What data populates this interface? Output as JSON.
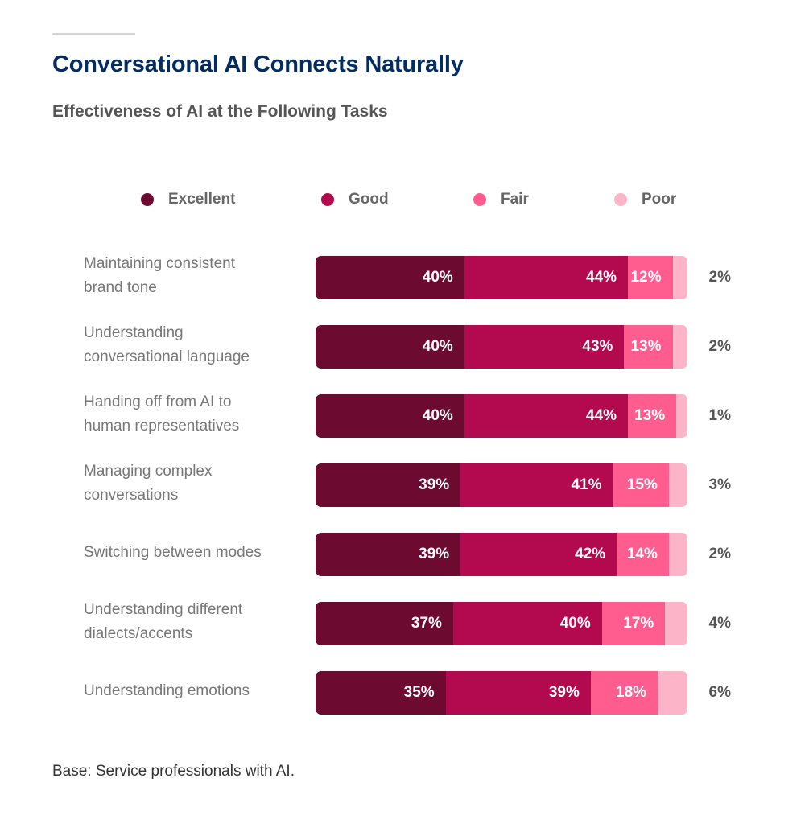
{
  "header": {
    "title": "Conversational AI Connects Naturally",
    "subtitle": "Effectiveness of AI at the Following Tasks"
  },
  "colors": {
    "excellent": "#6d0a30",
    "good": "#b3094f",
    "fair": "#ff5d8f",
    "poor": "#fbb4c8"
  },
  "chart_data": {
    "type": "bar",
    "orientation": "horizontal",
    "stacked": true,
    "title": "Conversational AI Connects Naturally",
    "subtitle": "Effectiveness of AI at the Following Tasks",
    "xlabel": "",
    "ylabel": "",
    "xlim": [
      0,
      100
    ],
    "legend_position": "top",
    "grid": false,
    "unit": "%",
    "categories": [
      [
        "Maintaining consistent",
        "brand tone"
      ],
      [
        "Understanding",
        "conversational language"
      ],
      [
        "Handing off from AI to",
        "human representatives"
      ],
      [
        "Managing complex",
        "conversations"
      ],
      [
        "Switching between modes"
      ],
      [
        "Understanding different",
        "dialects/accents"
      ],
      [
        "Understanding emotions"
      ]
    ],
    "series": [
      {
        "name": "Excellent",
        "values": [
          40,
          40,
          40,
          39,
          39,
          37,
          35
        ]
      },
      {
        "name": "Good",
        "values": [
          44,
          43,
          44,
          41,
          42,
          40,
          39
        ]
      },
      {
        "name": "Fair",
        "values": [
          12,
          13,
          13,
          15,
          14,
          17,
          18
        ]
      },
      {
        "name": "Poor",
        "values": [
          2,
          2,
          1,
          3,
          2,
          4,
          6
        ]
      }
    ]
  },
  "footnote": "Base: Service professionals with AI."
}
